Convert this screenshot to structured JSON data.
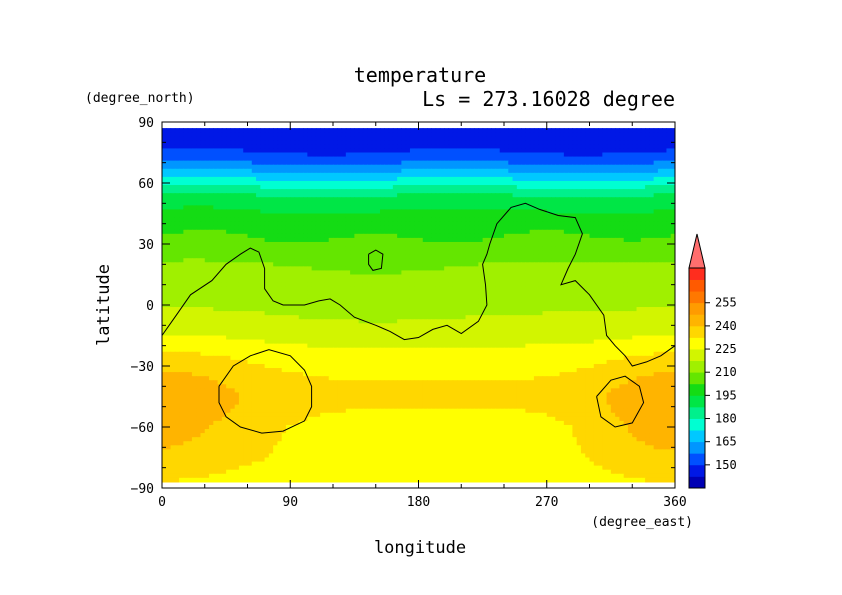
{
  "chart_data": {
    "type": "heatmap",
    "title": "temperature",
    "subtitle": "Ls = 273.16028 degree",
    "xlabel": "longitude",
    "ylabel": "latitude",
    "x_unit": "(degree_east)",
    "y_unit": "(degree_north)",
    "xlim": [
      0,
      360
    ],
    "ylim": [
      -90,
      90
    ],
    "data_lat_range": [
      -87,
      87
    ],
    "x_ticks": [
      "0",
      "90",
      "180",
      "270",
      "360"
    ],
    "y_ticks": [
      "90",
      "60",
      "30",
      "0",
      "−30",
      "−60",
      "−90"
    ],
    "x_tick_values": [
      0,
      90,
      180,
      270,
      360
    ],
    "y_tick_values": [
      90,
      60,
      30,
      0,
      -30,
      -60,
      -90
    ],
    "colorbar": {
      "levels": [
        150,
        165,
        180,
        195,
        210,
        225,
        240,
        255
      ],
      "labels": [
        "150",
        "165",
        "180",
        "195",
        "210",
        "225",
        "240",
        "255"
      ],
      "extend": "max",
      "colors": [
        "#0000b4",
        "#0018e6",
        "#0050ff",
        "#0096ff",
        "#00c8ff",
        "#00ffd2",
        "#00f08c",
        "#00e646",
        "#14dc14",
        "#64e600",
        "#a0f000",
        "#d2f500",
        "#ffff00",
        "#ffd700",
        "#ffb400",
        "#ff9b00",
        "#ff7800",
        "#ff5a00",
        "#ff2d1e",
        "#ff6e6e"
      ]
    },
    "profile": {
      "lat": [
        90,
        87,
        80,
        75,
        70,
        65,
        60,
        55,
        50,
        45,
        40,
        35,
        30,
        25,
        20,
        15,
        10,
        5,
        0,
        -5,
        -10,
        -15,
        -20,
        -25,
        -30,
        -35,
        -40,
        -45,
        -50,
        -55,
        -60,
        -65,
        -70,
        -75,
        -80,
        -85,
        -90
      ],
      "temp": [
        144,
        145,
        147,
        150,
        157,
        166,
        176,
        186,
        192,
        196,
        199,
        202,
        205,
        208,
        211,
        213,
        214,
        215,
        216,
        218,
        220,
        222,
        225,
        228,
        230,
        232,
        233,
        234,
        233,
        232,
        231,
        231,
        231,
        231,
        230,
        229,
        228
      ]
    },
    "warm_regions": [
      {
        "lon": 25,
        "lat": -50,
        "dlon": 55,
        "dlat": 32,
        "amp": 8
      },
      {
        "lon": 340,
        "lat": -55,
        "dlon": 45,
        "dlat": 30,
        "amp": 8
      },
      {
        "lon": 200,
        "lat": -70,
        "dlon": 110,
        "dlat": 15,
        "amp": -2
      },
      {
        "lon": 150,
        "lat": 10,
        "dlon": 70,
        "dlat": 25,
        "amp": -3
      }
    ],
    "contours": [
      [
        [
          0,
          -15
        ],
        [
          10,
          -5
        ],
        [
          20,
          5
        ],
        [
          35,
          12
        ],
        [
          45,
          20
        ],
        [
          55,
          25
        ],
        [
          62,
          28
        ],
        [
          68,
          26
        ],
        [
          72,
          18
        ],
        [
          72,
          8
        ],
        [
          78,
          2
        ],
        [
          85,
          0
        ],
        [
          100,
          0
        ],
        [
          110,
          2
        ],
        [
          118,
          3
        ],
        [
          125,
          0
        ],
        [
          135,
          -6
        ],
        [
          150,
          -10
        ],
        [
          160,
          -13
        ],
        [
          170,
          -17
        ],
        [
          180,
          -16
        ],
        [
          190,
          -12
        ],
        [
          200,
          -10
        ],
        [
          210,
          -14
        ],
        [
          222,
          -8
        ],
        [
          228,
          0
        ],
        [
          227,
          10
        ],
        [
          225,
          20
        ],
        [
          228,
          25
        ],
        [
          230,
          30
        ],
        [
          235,
          40
        ],
        [
          245,
          48
        ],
        [
          255,
          50
        ],
        [
          265,
          47
        ],
        [
          278,
          44
        ],
        [
          290,
          43
        ],
        [
          295,
          35
        ],
        [
          290,
          25
        ],
        [
          285,
          18
        ],
        [
          280,
          10
        ],
        [
          290,
          12
        ],
        [
          300,
          5
        ],
        [
          310,
          -5
        ],
        [
          312,
          -15
        ],
        [
          318,
          -20
        ],
        [
          325,
          -25
        ],
        [
          330,
          -30
        ],
        [
          340,
          -28
        ],
        [
          350,
          -25
        ],
        [
          360,
          -20
        ]
      ],
      [
        [
          145,
          25
        ],
        [
          150,
          27
        ],
        [
          155,
          25
        ],
        [
          154,
          18
        ],
        [
          148,
          17
        ],
        [
          145,
          20
        ],
        [
          145,
          25
        ]
      ],
      [
        [
          40,
          -40
        ],
        [
          50,
          -30
        ],
        [
          62,
          -25
        ],
        [
          75,
          -22
        ],
        [
          90,
          -25
        ],
        [
          100,
          -32
        ],
        [
          105,
          -40
        ],
        [
          105,
          -50
        ],
        [
          100,
          -57
        ],
        [
          85,
          -62
        ],
        [
          70,
          -63
        ],
        [
          55,
          -60
        ],
        [
          45,
          -55
        ],
        [
          40,
          -48
        ],
        [
          40,
          -40
        ]
      ],
      [
        [
          305,
          -45
        ],
        [
          315,
          -37
        ],
        [
          325,
          -35
        ],
        [
          335,
          -40
        ],
        [
          338,
          -48
        ],
        [
          330,
          -58
        ],
        [
          318,
          -60
        ],
        [
          308,
          -55
        ],
        [
          305,
          -45
        ]
      ]
    ]
  }
}
